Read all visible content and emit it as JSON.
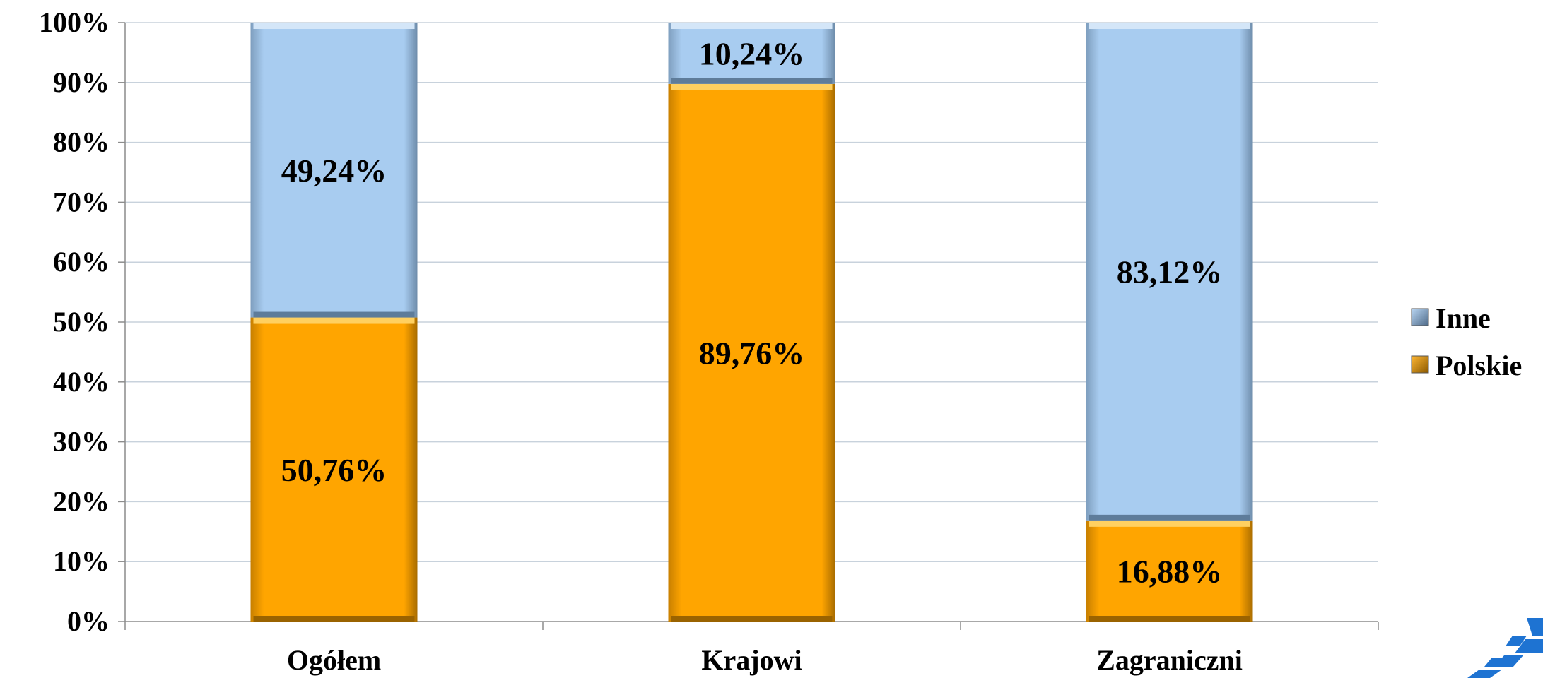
{
  "chart_data": {
    "type": "bar",
    "stacked": true,
    "categories": [
      "Ogółem",
      "Krajowi",
      "Zagraniczni"
    ],
    "series": [
      {
        "name": "Polskie",
        "values": [
          50.76,
          89.76,
          16.88
        ],
        "labels": [
          "50,76%",
          "89,76%",
          "16,88%"
        ],
        "color": "#FFA500"
      },
      {
        "name": "Inne",
        "values": [
          49.24,
          10.24,
          83.12
        ],
        "labels": [
          "49,24%",
          "10,24%",
          "83,12%"
        ],
        "color": "#A8CCF0"
      }
    ],
    "ylim": [
      0,
      100
    ],
    "yticks": [
      0,
      10,
      20,
      30,
      40,
      50,
      60,
      70,
      80,
      90,
      100
    ],
    "ytick_labels": [
      "0%",
      "10%",
      "20%",
      "30%",
      "40%",
      "50%",
      "60%",
      "70%",
      "80%",
      "90%",
      "100%"
    ],
    "grid": true,
    "legend": {
      "position": "right",
      "entries": [
        "Inne",
        "Polskie"
      ]
    }
  },
  "logo": {
    "name": "corner-logo-icon",
    "color": "#1E73D2"
  }
}
